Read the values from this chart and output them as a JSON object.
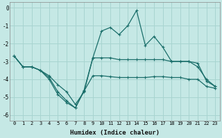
{
  "xlabel": "Humidex (Indice chaleur)",
  "ylabel": "",
  "background_color": "#c5e8e5",
  "grid_color": "#a8d4d0",
  "line_color": "#1a6e6a",
  "xlim": [
    -0.5,
    23.5
  ],
  "ylim": [
    -6.3,
    0.3
  ],
  "yticks": [
    0,
    -1,
    -2,
    -3,
    -4,
    -5,
    -6
  ],
  "xticks": [
    0,
    1,
    2,
    3,
    4,
    5,
    6,
    7,
    8,
    9,
    10,
    11,
    12,
    13,
    14,
    15,
    16,
    17,
    18,
    19,
    20,
    21,
    22,
    23
  ],
  "line_upper_x": [
    0,
    1,
    2,
    3,
    4,
    5,
    6,
    7,
    8,
    9,
    10,
    11,
    12,
    13,
    14,
    15,
    16,
    17,
    18,
    19,
    20,
    21,
    22,
    23
  ],
  "line_upper_y": [
    -2.7,
    -3.3,
    -3.3,
    -3.5,
    -3.8,
    -4.3,
    -4.7,
    -5.4,
    -4.7,
    -2.8,
    -1.3,
    -1.1,
    -1.5,
    -1.0,
    -0.15,
    -2.1,
    -1.6,
    -2.2,
    -3.0,
    -3.0,
    -3.0,
    -3.3,
    -4.0,
    -4.4
  ],
  "line_middle_x": [
    0,
    1,
    2,
    3,
    4,
    5,
    6,
    7,
    8,
    9,
    10,
    11,
    12,
    13,
    14,
    15,
    16,
    17,
    18,
    19,
    20,
    21,
    22,
    23
  ],
  "line_middle_y": [
    -2.7,
    -3.3,
    -3.3,
    -3.5,
    -3.9,
    -4.7,
    -5.2,
    -5.6,
    -4.6,
    -2.8,
    -2.8,
    -2.8,
    -2.9,
    -2.9,
    -2.9,
    -2.9,
    -2.9,
    -2.9,
    -3.0,
    -3.0,
    -3.0,
    -3.1,
    -4.1,
    -4.4
  ],
  "line_lower_x": [
    0,
    1,
    2,
    3,
    4,
    5,
    6,
    7,
    8,
    9,
    10,
    11,
    12,
    13,
    14,
    15,
    16,
    17,
    18,
    19,
    20,
    21,
    22,
    23
  ],
  "line_lower_y": [
    -2.7,
    -3.3,
    -3.3,
    -3.5,
    -4.0,
    -4.85,
    -5.3,
    -5.6,
    -4.65,
    -3.8,
    -3.8,
    -3.85,
    -3.9,
    -3.9,
    -3.9,
    -3.9,
    -3.85,
    -3.85,
    -3.9,
    -3.9,
    -4.0,
    -4.0,
    -4.4,
    -4.5
  ]
}
